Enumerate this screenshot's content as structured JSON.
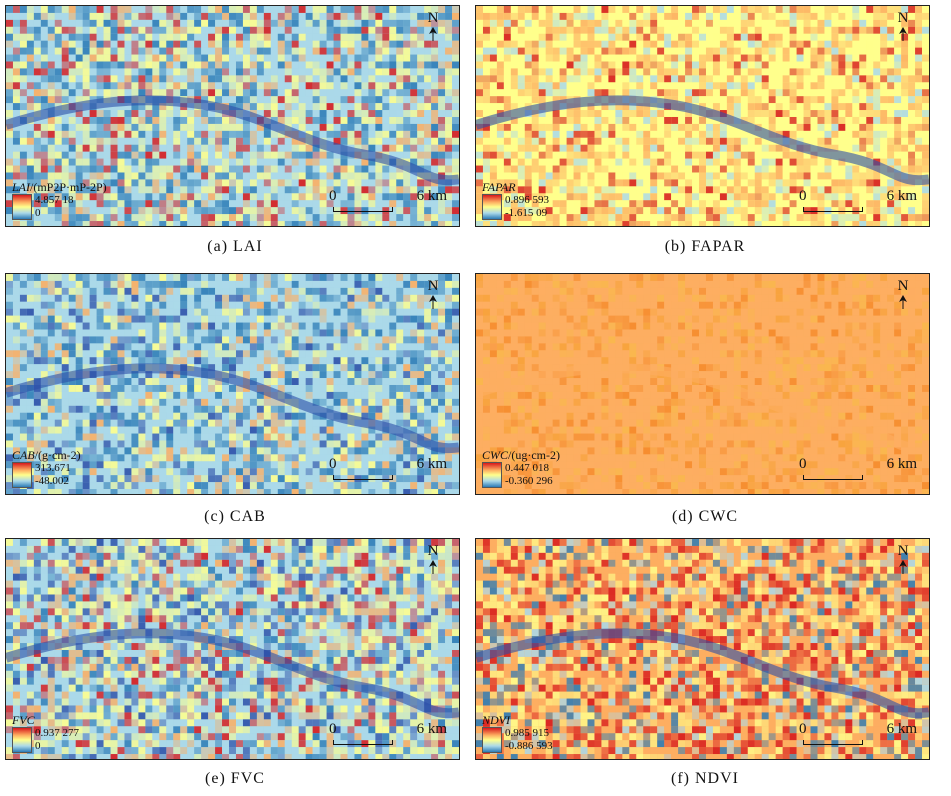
{
  "panels": [
    {
      "caption": "(a)  LAI",
      "legend_title": "LAI",
      "legend_unit": "/(mP2P·mP-2P)",
      "legend_max": "4.857 18",
      "legend_min": "0",
      "theme": "mixed"
    },
    {
      "caption": "(b)  FAPAR",
      "legend_title": "FAPAR",
      "legend_unit": "",
      "legend_max": "0.896 593",
      "legend_min": "-1.615 09",
      "theme": "warm"
    },
    {
      "caption": "(c)  CAB",
      "legend_title": "CAB",
      "legend_unit": "/(g·cm-2)",
      "legend_max": "313.671",
      "legend_min": "-48.002",
      "theme": "cool"
    },
    {
      "caption": "(d)  CWC",
      "legend_title": "CWC",
      "legend_unit": "/(ug·cm-2)",
      "legend_max": "0.447 018",
      "legend_min": "-0.360 296",
      "theme": "orange"
    },
    {
      "caption": "(e)  FVC",
      "legend_title": "FVC",
      "legend_unit": "",
      "legend_max": "0.937 277",
      "legend_min": "0",
      "theme": "mixed2"
    },
    {
      "caption": "(f)  NDVI",
      "legend_title": "NDVI",
      "legend_unit": "",
      "legend_max": "0.985 915",
      "legend_min": "-0.886 593",
      "theme": "warm2"
    }
  ],
  "north_label": "N",
  "scale_start": "0",
  "scale_end": "6 km",
  "colors": {
    "red": "#d7191c",
    "orange": "#fdae61",
    "yellow": "#ffff8c",
    "lightblue": "#abd9e9",
    "blue": "#2c7bb6",
    "darkblue": "#2b4fa8"
  }
}
